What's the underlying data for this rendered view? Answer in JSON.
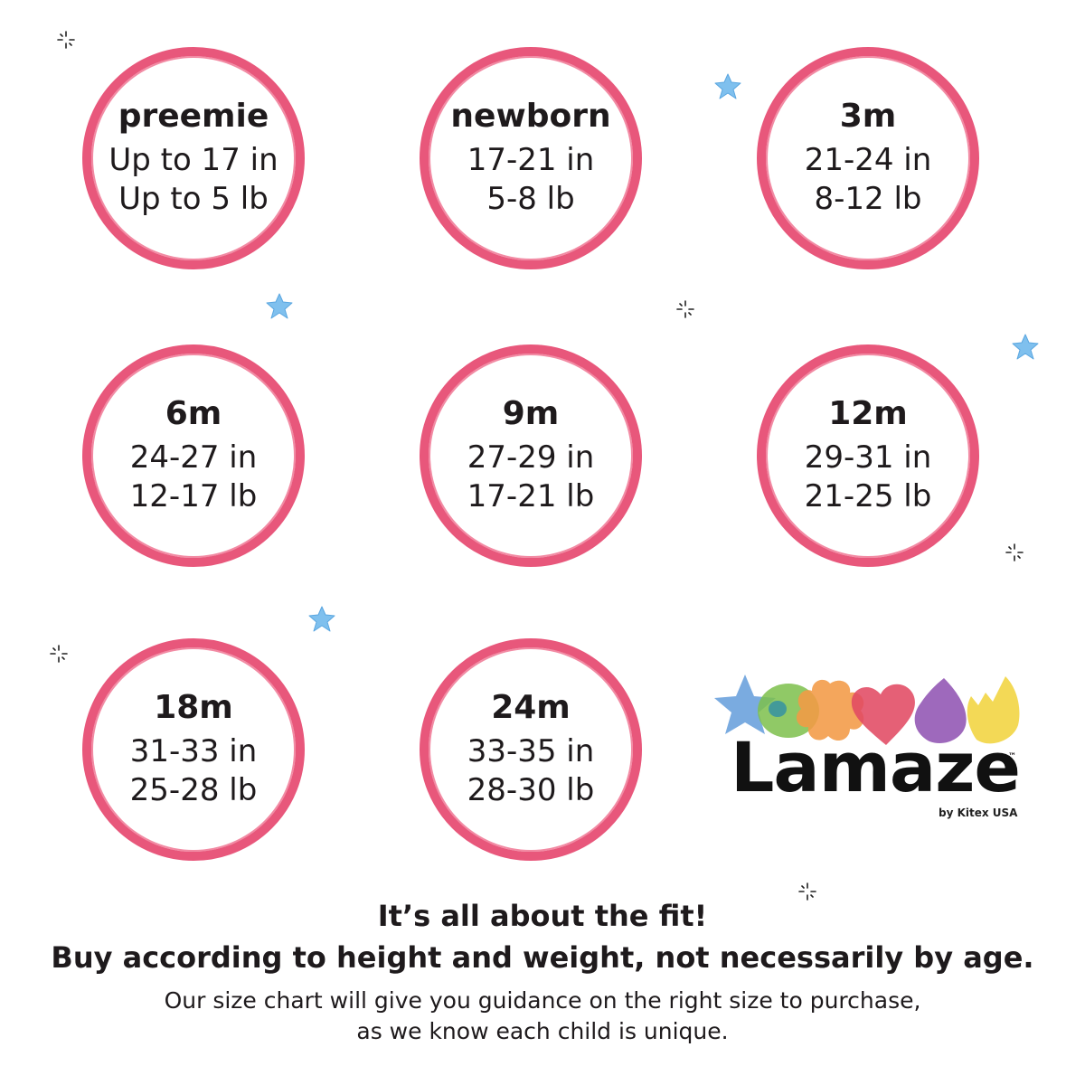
{
  "sizes": [
    {
      "label": "preemie",
      "height": "Up to 17 in",
      "weight": "Up to 5 lb"
    },
    {
      "label": "newborn",
      "height": "17-21 in",
      "weight": "5-8 lb"
    },
    {
      "label": "3m",
      "height": "21-24 in",
      "weight": "8-12 lb"
    },
    {
      "label": "6m",
      "height": "24-27 in",
      "weight": "12-17 lb"
    },
    {
      "label": "9m",
      "height": "27-29 in",
      "weight": "17-21 lb"
    },
    {
      "label": "12m",
      "height": "29-31 in",
      "weight": "21-25 lb"
    },
    {
      "label": "18m",
      "height": "31-33 in",
      "weight": "25-28 lb"
    },
    {
      "label": "24m",
      "height": "33-35 in",
      "weight": "28-30 lb"
    }
  ],
  "brand": {
    "name": "Lamaze",
    "trademark": "™",
    "byline": "by Kitex USA",
    "shape_colors": [
      "#6fa4dd",
      "#7cc04b",
      "#f39a45",
      "#e14a63",
      "#8d4fb0",
      "#f2d544"
    ]
  },
  "footer": {
    "heading_line1": "It’s all about the fit!",
    "heading_line2": "Buy according to height and weight, not necessarily by age.",
    "body_line1": "Our size chart will give you guidance on the right size to purchase,",
    "body_line2": "as we know each child is unique."
  },
  "colors": {
    "ring": "#e8577b",
    "star": "#7fc0ee",
    "text": "#1e1a1c"
  }
}
